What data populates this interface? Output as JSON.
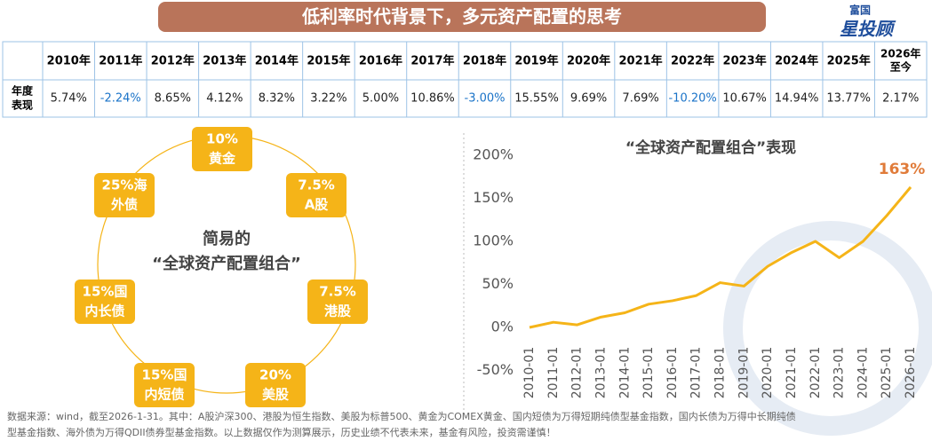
{
  "header": {
    "title": "低利率时代背景下，多元资产配置的思考",
    "logo_top": "富国",
    "logo_main": "星投顾"
  },
  "table": {
    "row_header": [
      "年度",
      "表现"
    ],
    "years": [
      "2010年",
      "2011年",
      "2012年",
      "2013年",
      "2014年",
      "2015年",
      "2016年",
      "2017年",
      "2018年",
      "2019年",
      "2020年",
      "2021年",
      "2022年",
      "2023年",
      "2024年",
      "2025年",
      [
        "2026年",
        "至今"
      ]
    ],
    "returns": [
      "5.74%",
      "-2.24%",
      "8.65%",
      "4.12%",
      "8.32%",
      "3.22%",
      "5.00%",
      "10.86%",
      "-3.00%",
      "15.55%",
      "9.69%",
      "7.69%",
      "-10.20%",
      "10.67%",
      "14.94%",
      "13.77%",
      "2.17%"
    ]
  },
  "allocation": {
    "center": [
      "简易的",
      "“全球资产配置组合”"
    ],
    "nodes": [
      [
        "10%",
        "黄金"
      ],
      [
        "7.5%",
        "A股"
      ],
      [
        "7.5%",
        "港股"
      ],
      [
        "20%",
        "美股"
      ],
      [
        "15%国",
        "内短债"
      ],
      [
        "15%国",
        "内长债"
      ],
      [
        "25%海",
        "外债"
      ]
    ]
  },
  "chart_data": {
    "type": "line",
    "title": "“全球资产配置组合”表现",
    "categories": [
      "2010-01",
      "2011-01",
      "2012-01",
      "2013-01",
      "2014-01",
      "2015-01",
      "2016-01",
      "2017-01",
      "2018-01",
      "2019-01",
      "2020-01",
      "2021-01",
      "2022-01",
      "2023-01",
      "2024-01",
      "2025-01",
      "2026-01"
    ],
    "values": [
      0,
      6,
      3,
      12,
      17,
      27,
      31,
      37,
      52,
      48,
      71,
      87,
      100,
      81,
      100,
      130,
      163
    ],
    "value_labels": [
      null,
      null,
      null,
      null,
      null,
      null,
      null,
      null,
      null,
      null,
      null,
      null,
      null,
      null,
      null,
      null,
      "163%"
    ],
    "color": "#f5b418",
    "ylim": [
      -60,
      215
    ],
    "yticks": [
      {
        "value": -50,
        "label": "-50%"
      },
      {
        "value": 0,
        "label": "0%"
      },
      {
        "value": 50,
        "label": "50%"
      },
      {
        "value": 100,
        "label": "100%"
      },
      {
        "value": 150,
        "label": "150%"
      },
      {
        "value": 200,
        "label": "200%"
      }
    ]
  },
  "footnote": [
    "数据来源：wind，截至2026-1-31。其中：A股沪深300、港股为恒生指数、美股为标普500、黄金为COMEX黄金、国内短债为万得短期纯债型基金指数，国内长债为万得中长期纯债",
    "型基金指数、海外债为万得QDII债券型基金指数。以上数据仅作为测算展示，历史业绩不代表未来，基金有风险，投资需谨慎！"
  ]
}
